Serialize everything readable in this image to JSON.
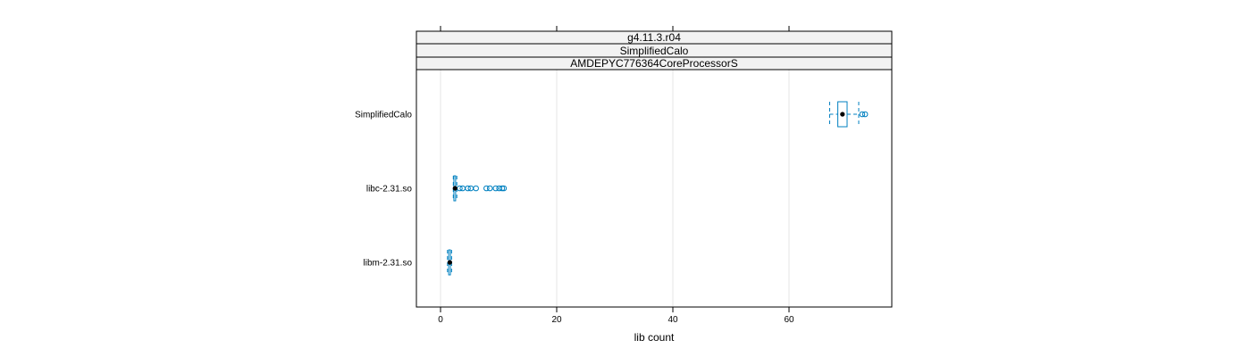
{
  "chart_data": {
    "type": "boxplot",
    "strips": [
      "g4.11.3.r04",
      "SimplifiedCalo",
      "AMDEPYC776364CoreProcessorS"
    ],
    "xlabel": "lib count",
    "ylabel": "",
    "xlim": [
      -4,
      78
    ],
    "xticks": [
      0,
      20,
      40,
      60
    ],
    "grid": true,
    "colors": {
      "box": "#0080c0",
      "median_dot": "#000000",
      "grid": "#e6e6e6",
      "strip_bg": "#f2f2f2"
    },
    "categories": [
      "SimplifiedCalo",
      "libc-2.31.so",
      "libm-2.31.so"
    ],
    "boxes": [
      {
        "name": "SimplifiedCalo",
        "whisker_low": 67.0,
        "q1": 68.4,
        "median": 69.2,
        "q3": 70.0,
        "whisker_high": 72.0,
        "outliers": [
          72.6,
          73.1
        ]
      },
      {
        "name": "libc-2.31.so",
        "whisker_low": 2.2,
        "q1": 2.3,
        "median": 2.5,
        "q3": 2.6,
        "whisker_high": 2.8,
        "outliers": [
          3.3,
          3.8,
          4.7,
          5.2,
          6.1,
          7.9,
          8.5,
          9.5,
          10.1,
          10.6,
          10.9
        ]
      },
      {
        "name": "libm-2.31.so",
        "whisker_low": 1.2,
        "q1": 1.4,
        "median": 1.6,
        "q3": 1.7,
        "whisker_high": 1.9,
        "outliers": []
      }
    ]
  }
}
